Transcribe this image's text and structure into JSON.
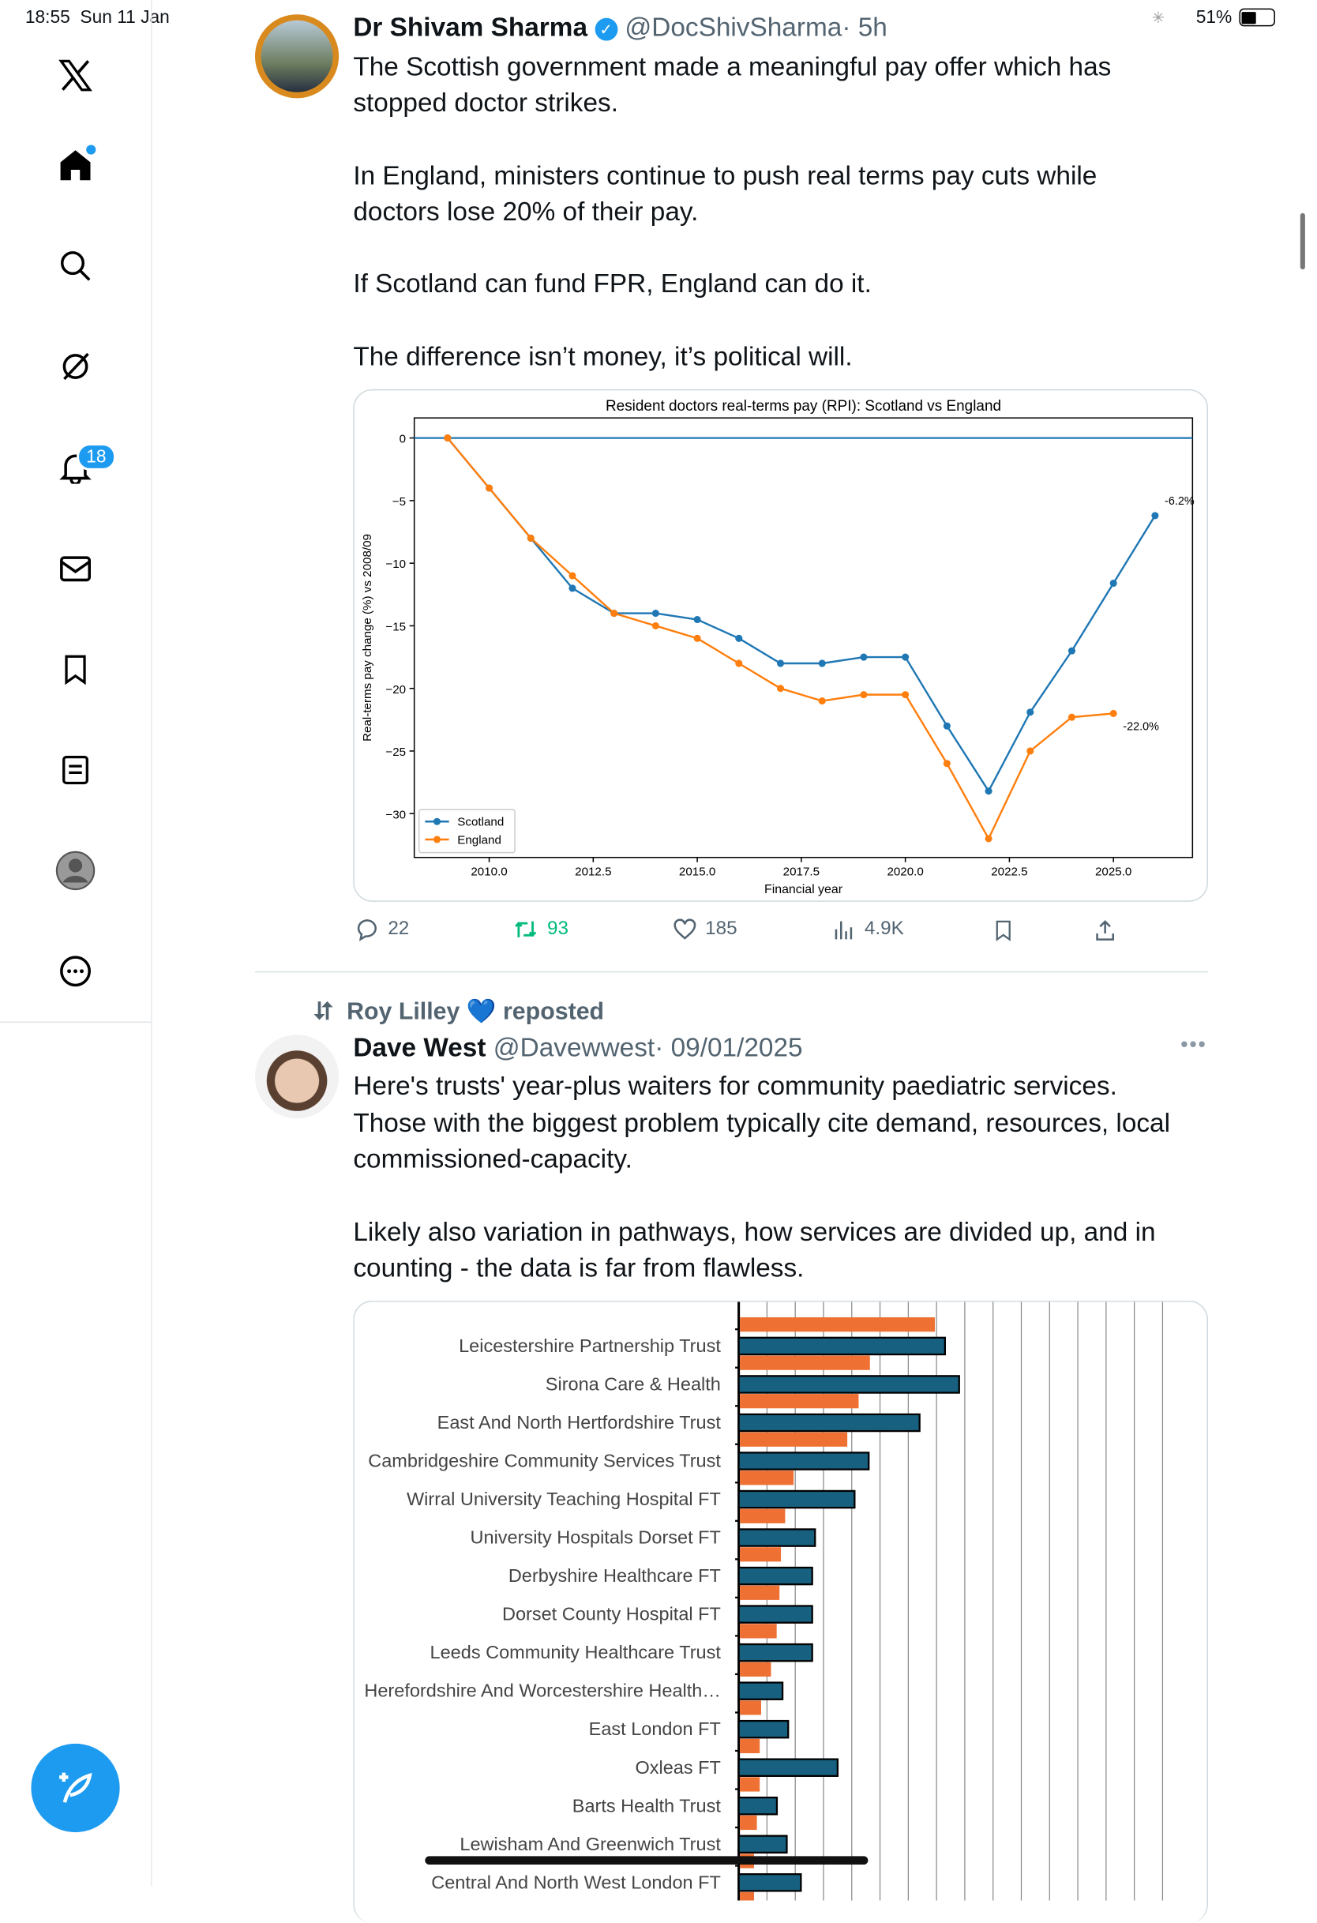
{
  "status_bar": {
    "time": "18:55",
    "date": "Sun 11 Jan",
    "battery": "51%"
  },
  "sidebar": {
    "items": [
      {
        "icon": "x-logo-icon"
      },
      {
        "icon": "home-icon",
        "active": true
      },
      {
        "icon": "search-icon"
      },
      {
        "icon": "grok-icon"
      },
      {
        "icon": "bell-icon",
        "badge": "18"
      },
      {
        "icon": "mail-icon"
      },
      {
        "icon": "bookmark-icon"
      },
      {
        "icon": "lists-icon"
      },
      {
        "icon": "profile-icon"
      },
      {
        "icon": "more-icon"
      }
    ],
    "compose_icon": "compose-icon"
  },
  "colors": {
    "accent": "#1d9bf0",
    "retweet": "#00ba7c",
    "scotland": "#1f77b4",
    "england": "#ff7f0e",
    "bar_blue": "#17607f",
    "bar_orange": "#ee7033"
  },
  "tweet1": {
    "name": "Dr Shivam Sharma",
    "handle": "@DocShivSharma",
    "time": "· 5h",
    "verified": true,
    "lines": [
      "The Scottish government made a meaningful pay offer which has",
      "stopped doctor strikes.",
      "In England, ministers continue to push real terms pay cuts while",
      "doctors lose 20% of their pay.",
      "If Scotland can fund FPR, England can do it.",
      "The difference isn’t money, it’s political will."
    ],
    "actions": {
      "replies": "22",
      "reposts": "93",
      "likes": "185",
      "views": "4.9K"
    }
  },
  "chart_data": [
    {
      "type": "line",
      "title": "Resident doctors real-terms pay (RPI): Scotland vs England",
      "xlabel": "Financial year",
      "ylabel": "Real-terms pay change (%) vs 2008/09",
      "xlim": [
        2008.2,
        2026.9
      ],
      "ylim": [
        -33.5,
        1.6
      ],
      "xticks": [
        "2010.0",
        "2012.5",
        "2015.0",
        "2017.5",
        "2020.0",
        "2022.5",
        "2025.0"
      ],
      "xtick_values": [
        2010,
        2012.5,
        2015,
        2017.5,
        2020,
        2022.5,
        2025
      ],
      "yticks": [
        "0",
        "−5",
        "−10",
        "−15",
        "−20",
        "−25",
        "−30"
      ],
      "ytick_values": [
        0,
        -5,
        -10,
        -15,
        -20,
        -25,
        -30
      ],
      "reference_line": 0,
      "legend": "lower-left",
      "grid": false,
      "series": [
        {
          "name": "Scotland",
          "color": "#1f77b4",
          "x": [
            2009,
            2010,
            2011,
            2012,
            2013,
            2014,
            2015,
            2016,
            2017,
            2018,
            2019,
            2020,
            2021,
            2022,
            2023,
            2024,
            2025,
            2026
          ],
          "y": [
            0,
            -4,
            -8,
            -12,
            -14,
            -14,
            -14.5,
            -16,
            -18,
            -18,
            -17.5,
            -17.5,
            -23,
            -28.2,
            -21.9,
            -17,
            -11.6,
            -6.2
          ],
          "end_label": "-6.2%"
        },
        {
          "name": "England",
          "color": "#ff7f0e",
          "x": [
            2009,
            2010,
            2011,
            2012,
            2013,
            2014,
            2015,
            2016,
            2017,
            2018,
            2019,
            2020,
            2021,
            2022,
            2023,
            2024,
            2025
          ],
          "y": [
            0,
            -4,
            -8,
            -11,
            -14,
            -15,
            -16,
            -18,
            -20,
            -21,
            -20.5,
            -20.5,
            -26,
            -32,
            -25,
            -22.3,
            -22.0
          ],
          "end_label": "-22.0%"
        }
      ]
    },
    {
      "type": "bar",
      "orientation": "horizontal",
      "grid": true,
      "xlim": [
        0,
        15
      ],
      "categories": [
        "",
        "Leicestershire Partnership Trust",
        "Sirona Care & Health",
        "East And North Hertfordshire Trust",
        "Cambridgeshire Community Services Trust",
        "Wirral University Teaching Hospital FT",
        "University Hospitals Dorset FT",
        "Derbyshire Healthcare FT",
        "Dorset County Hospital FT",
        "Leeds Community Healthcare Trust",
        "Herefordshire And Worcestershire Health…",
        "East London FT",
        "Oxleas FT",
        "Barts Health Trust",
        "Lewisham And Greenwich Trust",
        "Central And North West London FT"
      ],
      "series": [
        {
          "color": "#17607f",
          "values": [
            null,
            7.3,
            7.8,
            6.4,
            4.6,
            4.1,
            2.7,
            2.6,
            2.6,
            2.6,
            1.55,
            1.75,
            3.5,
            1.35,
            1.7,
            2.2
          ]
        },
        {
          "color": "#ee7033",
          "values": [
            6.9,
            4.6,
            4.2,
            3.8,
            1.9,
            1.6,
            1.45,
            1.4,
            1.3,
            1.1,
            0.75,
            0.7,
            0.7,
            0.6,
            0.5,
            0.5
          ]
        }
      ]
    }
  ],
  "tweet2": {
    "reposted_by": "Roy Lilley",
    "repost_emoji": "💙",
    "reposted_label": "reposted",
    "name": "Dave West",
    "handle": "@Davewwest",
    "time": "· 09/01/2025",
    "lines": [
      "Here's trusts' year-plus waiters for community paediatric services.",
      "Those with the biggest problem typically cite demand, resources, local",
      "commissioned-capacity.",
      "Likely also variation in pathways, how services are divided up, and in",
      "counting - the data is far from flawless."
    ]
  }
}
